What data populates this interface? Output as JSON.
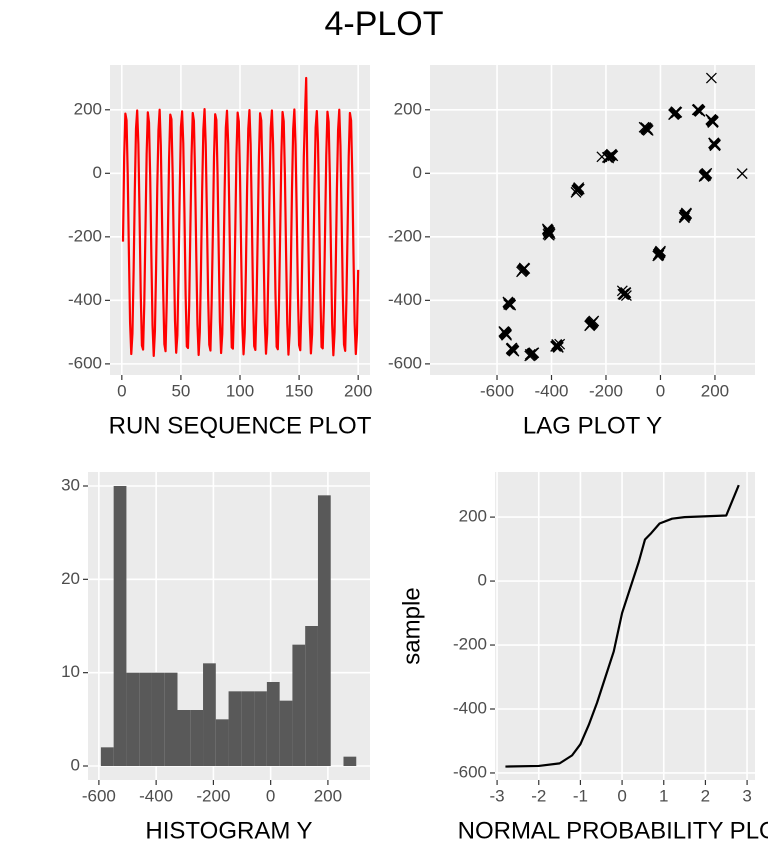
{
  "title": "4-PLOT",
  "chart_data": [
    {
      "type": "line",
      "x_label": "RUN SEQUENCE PLOT",
      "color": "#ff0000",
      "grid": true,
      "xlim": [
        -10,
        210
      ],
      "ylim": [
        -635,
        341
      ],
      "xticks": [
        0,
        50,
        100,
        150,
        200
      ],
      "yticks": [
        -600,
        -400,
        -200,
        0,
        200
      ],
      "x": [
        1,
        2,
        3,
        4,
        5,
        6,
        7,
        8,
        9,
        10,
        11,
        12,
        13,
        14,
        15,
        16,
        17,
        18,
        19,
        20,
        21,
        22,
        23,
        24,
        25,
        26,
        27,
        28,
        29,
        30,
        31,
        32,
        33,
        34,
        35,
        36,
        37,
        38,
        39,
        40,
        41,
        42,
        43,
        44,
        45,
        46,
        47,
        48,
        49,
        50,
        51,
        52,
        53,
        54,
        55,
        56,
        57,
        58,
        59,
        60,
        61,
        62,
        63,
        64,
        65,
        66,
        67,
        68,
        69,
        70,
        71,
        72,
        73,
        74,
        75,
        76,
        77,
        78,
        79,
        80,
        81,
        82,
        83,
        84,
        85,
        86,
        87,
        88,
        89,
        90,
        91,
        92,
        93,
        94,
        95,
        96,
        97,
        98,
        99,
        100,
        101,
        102,
        103,
        104,
        105,
        106,
        107,
        108,
        109,
        110,
        111,
        112,
        113,
        114,
        115,
        116,
        117,
        118,
        119,
        120,
        121,
        122,
        123,
        124,
        125,
        126,
        127,
        128,
        129,
        130,
        131,
        132,
        133,
        134,
        135,
        136,
        137,
        138,
        139,
        140,
        141,
        142,
        143,
        144,
        145,
        146,
        147,
        148,
        149,
        150,
        151,
        152,
        153,
        154,
        155,
        156,
        157,
        158,
        159,
        160,
        161,
        162,
        163,
        164,
        165,
        166,
        167,
        168,
        169,
        170,
        171,
        172,
        173,
        174,
        175,
        176,
        177,
        178,
        179,
        180,
        181,
        182,
        183,
        184,
        185,
        186,
        187,
        188,
        189,
        190,
        191,
        192,
        193,
        194,
        195,
        196,
        197,
        198,
        199,
        200
      ],
      "values": [
        -215,
        52,
        188,
        167,
        -4,
        -252,
        -471,
        -569,
        -504,
        -304,
        -53,
        141,
        198,
        92,
        -131,
        -378,
        -542,
        -555,
        -411,
        -180,
        60,
        192,
        160,
        -10,
        -260,
        -480,
        -575,
        -498,
        -300,
        -45,
        135,
        200,
        88,
        -140,
        -370,
        -538,
        -560,
        -405,
        -190,
        48,
        185,
        170,
        0,
        -245,
        -465,
        -565,
        -510,
        -310,
        -60,
        145,
        195,
        95,
        -125,
        -385,
        -545,
        -550,
        -415,
        -175,
        55,
        190,
        165,
        -8,
        -255,
        -475,
        -572,
        -500,
        -298,
        -50,
        138,
        202,
        90,
        -135,
        -380,
        -540,
        -558,
        -408,
        -195,
        50,
        186,
        168,
        -2,
        -248,
        -468,
        -566,
        -506,
        -306,
        -55,
        143,
        197,
        94,
        -128,
        -375,
        -548,
        -552,
        -412,
        -182,
        58,
        191,
        163,
        -6,
        -258,
        -478,
        -570,
        -502,
        -302,
        -48,
        140,
        199,
        91,
        -133,
        -382,
        -544,
        -556,
        -410,
        -188,
        53,
        189,
        166,
        -3,
        -250,
        -470,
        -568,
        -505,
        -305,
        -52,
        142,
        198,
        93,
        -130,
        -377,
        -546,
        -554,
        -409,
        -185,
        56,
        193,
        164,
        -5,
        -253,
        -473,
        -571,
        -503,
        -303,
        -51,
        139,
        201,
        89,
        -132,
        -379,
        -541,
        -557,
        -413,
        -192,
        51,
        187,
        300,
        -1,
        -249,
        -469,
        -567,
        -507,
        -307,
        -54,
        144,
        196,
        96,
        -127,
        -376,
        -547,
        -551,
        -414,
        -178,
        57,
        194,
        162,
        -7,
        -256,
        -476,
        -573,
        -501,
        -301,
        -49,
        137,
        200,
        87,
        -138,
        -381,
        -539,
        -559,
        -407,
        -186,
        54,
        190,
        166,
        -4,
        -251,
        -472,
        -569,
        -504,
        -304
      ]
    },
    {
      "type": "scatter",
      "x_label": "LAG PLOT Y",
      "color": "#000000",
      "marker": "x",
      "grid": true,
      "xlim": [
        -846,
        347
      ],
      "ylim": [
        -635,
        341
      ],
      "xticks": [
        -600,
        -400,
        -200,
        0,
        200
      ],
      "yticks": [
        -600,
        -400,
        -200,
        0,
        200
      ],
      "x": [
        -215,
        52,
        188,
        167,
        -4,
        -252,
        -471,
        -569,
        -504,
        -304,
        -53,
        141,
        198,
        92,
        -131,
        -378,
        -542,
        -555,
        -411,
        -180,
        60,
        192,
        160,
        -10,
        -260,
        -480,
        -575,
        -498,
        -300,
        -45,
        135,
        200,
        88,
        -140,
        -370,
        -538,
        -560,
        -405,
        -190,
        48,
        185,
        170,
        0,
        -245,
        -465,
        -565,
        -510,
        -310,
        -60,
        145,
        195,
        95,
        -125,
        -385,
        -545,
        -550,
        -415,
        -175,
        55,
        190,
        165,
        -8,
        -255,
        -475,
        -572,
        -500,
        -298,
        -50,
        138,
        202,
        90,
        -135,
        -380,
        -540,
        -558,
        -408,
        -195,
        50,
        186,
        168,
        -2,
        -248,
        -468,
        -566,
        -506,
        -306,
        -55,
        143,
        197,
        94,
        -128,
        -375,
        -548,
        -552,
        -412,
        -182,
        58,
        191,
        163,
        -6,
        -258,
        -478,
        -570,
        -502,
        -302,
        -48,
        140,
        199,
        91,
        -133,
        -382,
        -544,
        -556,
        -410,
        -188,
        53,
        189,
        166,
        -3,
        -250,
        -470,
        -568,
        -505,
        -305,
        -52,
        142,
        198,
        93,
        -130,
        -377,
        -546,
        -554,
        -409,
        -185,
        56,
        193,
        164,
        -5,
        -253,
        -473,
        -571,
        -503,
        -303,
        -51,
        139,
        201,
        89,
        -132,
        -379,
        -541,
        -557,
        -413,
        -192,
        51,
        187,
        300,
        -1,
        -249,
        -469,
        -567,
        -507,
        -307,
        -54,
        144,
        196,
        96,
        -127,
        -376,
        -547,
        -551,
        -414,
        -178,
        57,
        194,
        162,
        -7,
        -256,
        -476,
        -573,
        -501,
        -301,
        -49,
        137,
        200,
        87,
        -138,
        -381,
        -539,
        -559,
        -407,
        -186,
        54,
        190,
        166,
        -4,
        -251,
        -472,
        -569,
        -504
      ],
      "values": [
        52,
        188,
        167,
        -4,
        -252,
        -471,
        -569,
        -504,
        -304,
        -53,
        141,
        198,
        92,
        -131,
        -378,
        -542,
        -555,
        -411,
        -180,
        60,
        192,
        160,
        -10,
        -260,
        -480,
        -575,
        -498,
        -300,
        -45,
        135,
        200,
        88,
        -140,
        -370,
        -538,
        -560,
        -405,
        -190,
        48,
        185,
        170,
        0,
        -245,
        -465,
        -565,
        -510,
        -310,
        -60,
        145,
        195,
        95,
        -125,
        -385,
        -545,
        -550,
        -415,
        -175,
        55,
        190,
        165,
        -8,
        -255,
        -475,
        -572,
        -500,
        -298,
        -50,
        138,
        202,
        90,
        -135,
        -380,
        -540,
        -558,
        -408,
        -195,
        50,
        186,
        168,
        -2,
        -248,
        -468,
        -566,
        -506,
        -306,
        -55,
        143,
        197,
        94,
        -128,
        -375,
        -548,
        -552,
        -412,
        -182,
        58,
        191,
        163,
        -6,
        -258,
        -478,
        -570,
        -502,
        -302,
        -48,
        140,
        199,
        91,
        -133,
        -382,
        -544,
        -556,
        -410,
        -188,
        53,
        189,
        166,
        -3,
        -250,
        -470,
        -568,
        -505,
        -305,
        -52,
        142,
        198,
        93,
        -130,
        -377,
        -546,
        -554,
        -409,
        -185,
        56,
        193,
        164,
        -5,
        -253,
        -473,
        -571,
        -503,
        -303,
        -51,
        139,
        201,
        89,
        -132,
        -379,
        -541,
        -557,
        -413,
        -192,
        51,
        187,
        300,
        -1,
        -249,
        -469,
        -567,
        -507,
        -307,
        -54,
        144,
        196,
        96,
        -127,
        -376,
        -547,
        -551,
        -414,
        -178,
        57,
        194,
        162,
        -7,
        -256,
        -476,
        -573,
        -501,
        -301,
        -49,
        137,
        200,
        87,
        -138,
        -381,
        -539,
        -559,
        -407,
        -186,
        54,
        190,
        166,
        -4,
        -251,
        -472,
        -569,
        -504,
        -304
      ]
    },
    {
      "type": "histogram",
      "x_label": "HISTOGRAM Y",
      "color": "#595959",
      "grid": true,
      "xlim": [
        -638,
        347
      ],
      "ylim": [
        -1.5,
        31.5
      ],
      "xticks": [
        -600,
        -400,
        -200,
        0,
        200
      ],
      "yticks": [
        0,
        10,
        20,
        30
      ],
      "bins": [
        -593,
        -548.4,
        -503.8,
        -459.2,
        -414.6,
        -370,
        -325.4,
        -280.8,
        -236.2,
        -191.6,
        -147,
        -102.4,
        -57.8,
        -13.2,
        31.4,
        76,
        120.6,
        165.2,
        209.8,
        254.4,
        299
      ],
      "values": [
        2,
        30,
        10,
        10,
        10,
        10,
        6,
        6,
        11,
        5,
        8,
        8,
        8,
        9,
        7,
        13,
        15,
        29,
        0,
        1
      ]
    },
    {
      "type": "line",
      "x_label": "NORMAL PROBABILITY PLOT",
      "y_label": "sample",
      "color": "#000000",
      "grid": true,
      "xlim": [
        -3.05,
        3.19
      ],
      "ylim": [
        -622,
        341
      ],
      "xticks": [
        -3,
        -2,
        -1,
        0,
        1,
        2,
        3
      ],
      "yticks": [
        -600,
        -400,
        -200,
        0,
        200
      ],
      "x": [
        -2.8,
        -2,
        -1.5,
        -1.2,
        -1,
        -0.8,
        -0.6,
        -0.4,
        -0.2,
        0,
        0.2,
        0.4,
        0.55,
        0.7,
        0.9,
        1.2,
        1.5,
        2.5,
        2.8
      ],
      "values": [
        -580,
        -578,
        -570,
        -545,
        -510,
        -450,
        -380,
        -300,
        -220,
        -100,
        -20,
        60,
        130,
        150,
        180,
        195,
        200,
        205,
        300
      ]
    }
  ]
}
